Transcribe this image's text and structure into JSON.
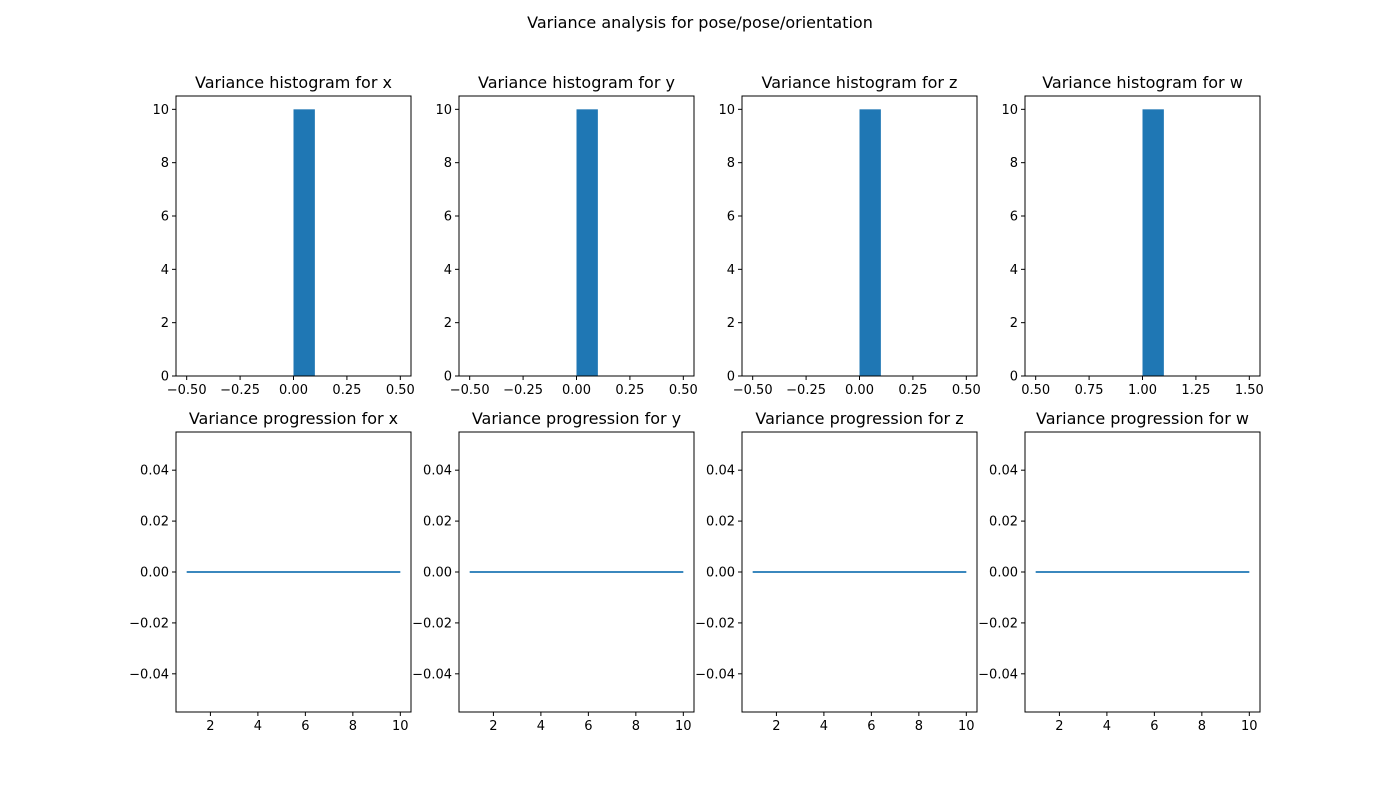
{
  "figure": {
    "title": "Variance analysis for pose/pose/orientation"
  },
  "colors": {
    "series": "#1f77b4",
    "axes": "#000000",
    "background": "#ffffff"
  },
  "chart_data": [
    {
      "type": "bar",
      "title": "Variance histogram for x",
      "bins": [
        {
          "start": 0.0,
          "end": 0.1,
          "count": 10
        }
      ],
      "xlim": [
        -0.55,
        0.55
      ],
      "ylim": [
        0,
        10.5
      ],
      "xticks": [
        -0.5,
        -0.25,
        0.0,
        0.25,
        0.5
      ],
      "xtick_labels": [
        "−0.50",
        "−0.25",
        "0.00",
        "0.25",
        "0.50"
      ],
      "yticks": [
        0,
        2,
        4,
        6,
        8,
        10
      ],
      "ytick_labels": [
        "0",
        "2",
        "4",
        "6",
        "8",
        "10"
      ],
      "grid": false
    },
    {
      "type": "bar",
      "title": "Variance histogram for y",
      "bins": [
        {
          "start": 0.0,
          "end": 0.1,
          "count": 10
        }
      ],
      "xlim": [
        -0.55,
        0.55
      ],
      "ylim": [
        0,
        10.5
      ],
      "xticks": [
        -0.5,
        -0.25,
        0.0,
        0.25,
        0.5
      ],
      "xtick_labels": [
        "−0.50",
        "−0.25",
        "0.00",
        "0.25",
        "0.50"
      ],
      "yticks": [
        0,
        2,
        4,
        6,
        8,
        10
      ],
      "ytick_labels": [
        "0",
        "2",
        "4",
        "6",
        "8",
        "10"
      ],
      "grid": false
    },
    {
      "type": "bar",
      "title": "Variance histogram for z",
      "bins": [
        {
          "start": 0.0,
          "end": 0.1,
          "count": 10
        }
      ],
      "xlim": [
        -0.55,
        0.55
      ],
      "ylim": [
        0,
        10.5
      ],
      "xticks": [
        -0.5,
        -0.25,
        0.0,
        0.25,
        0.5
      ],
      "xtick_labels": [
        "−0.50",
        "−0.25",
        "0.00",
        "0.25",
        "0.50"
      ],
      "yticks": [
        0,
        2,
        4,
        6,
        8,
        10
      ],
      "ytick_labels": [
        "0",
        "2",
        "4",
        "6",
        "8",
        "10"
      ],
      "grid": false
    },
    {
      "type": "bar",
      "title": "Variance histogram for w",
      "bins": [
        {
          "start": 1.0,
          "end": 1.1,
          "count": 10
        }
      ],
      "xlim": [
        0.45,
        1.55
      ],
      "ylim": [
        0,
        10.5
      ],
      "xticks": [
        0.5,
        0.75,
        1.0,
        1.25,
        1.5
      ],
      "xtick_labels": [
        "0.50",
        "0.75",
        "1.00",
        "1.25",
        "1.50"
      ],
      "yticks": [
        0,
        2,
        4,
        6,
        8,
        10
      ],
      "ytick_labels": [
        "0",
        "2",
        "4",
        "6",
        "8",
        "10"
      ],
      "grid": false
    },
    {
      "type": "line",
      "title": "Variance progression for x",
      "x": [
        1,
        2,
        3,
        4,
        5,
        6,
        7,
        8,
        9,
        10
      ],
      "y": [
        0,
        0,
        0,
        0,
        0,
        0,
        0,
        0,
        0,
        0
      ],
      "xlim": [
        0.55,
        10.45
      ],
      "ylim": [
        -0.055,
        0.055
      ],
      "xticks": [
        2,
        4,
        6,
        8,
        10
      ],
      "xtick_labels": [
        "2",
        "4",
        "6",
        "8",
        "10"
      ],
      "yticks": [
        -0.04,
        -0.02,
        0.0,
        0.02,
        0.04
      ],
      "ytick_labels": [
        "−0.04",
        "−0.02",
        "0.00",
        "0.02",
        "0.04"
      ],
      "grid": false
    },
    {
      "type": "line",
      "title": "Variance progression for y",
      "x": [
        1,
        2,
        3,
        4,
        5,
        6,
        7,
        8,
        9,
        10
      ],
      "y": [
        0,
        0,
        0,
        0,
        0,
        0,
        0,
        0,
        0,
        0
      ],
      "xlim": [
        0.55,
        10.45
      ],
      "ylim": [
        -0.055,
        0.055
      ],
      "xticks": [
        2,
        4,
        6,
        8,
        10
      ],
      "xtick_labels": [
        "2",
        "4",
        "6",
        "8",
        "10"
      ],
      "yticks": [
        -0.04,
        -0.02,
        0.0,
        0.02,
        0.04
      ],
      "ytick_labels": [
        "−0.04",
        "−0.02",
        "0.00",
        "0.02",
        "0.04"
      ],
      "grid": false
    },
    {
      "type": "line",
      "title": "Variance progression for z",
      "x": [
        1,
        2,
        3,
        4,
        5,
        6,
        7,
        8,
        9,
        10
      ],
      "y": [
        0,
        0,
        0,
        0,
        0,
        0,
        0,
        0,
        0,
        0
      ],
      "xlim": [
        0.55,
        10.45
      ],
      "ylim": [
        -0.055,
        0.055
      ],
      "xticks": [
        2,
        4,
        6,
        8,
        10
      ],
      "xtick_labels": [
        "2",
        "4",
        "6",
        "8",
        "10"
      ],
      "yticks": [
        -0.04,
        -0.02,
        0.0,
        0.02,
        0.04
      ],
      "ytick_labels": [
        "−0.04",
        "−0.02",
        "0.00",
        "0.02",
        "0.04"
      ],
      "grid": false
    },
    {
      "type": "line",
      "title": "Variance progression for w",
      "x": [
        1,
        2,
        3,
        4,
        5,
        6,
        7,
        8,
        9,
        10
      ],
      "y": [
        0,
        0,
        0,
        0,
        0,
        0,
        0,
        0,
        0,
        0
      ],
      "xlim": [
        0.55,
        10.45
      ],
      "ylim": [
        -0.055,
        0.055
      ],
      "xticks": [
        2,
        4,
        6,
        8,
        10
      ],
      "xtick_labels": [
        "2",
        "4",
        "6",
        "8",
        "10"
      ],
      "yticks": [
        -0.04,
        -0.02,
        0.0,
        0.02,
        0.04
      ],
      "ytick_labels": [
        "−0.04",
        "−0.02",
        "0.00",
        "0.02",
        "0.04"
      ],
      "grid": false
    }
  ]
}
